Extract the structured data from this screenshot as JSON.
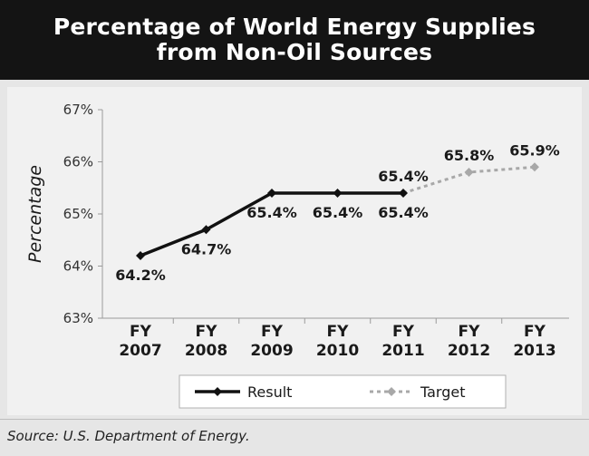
{
  "header": {
    "title_line1": "Percentage of World Energy Supplies",
    "title_line2": "from Non-Oil Sources"
  },
  "footer": {
    "source": "Source: U.S. Department of Energy."
  },
  "colors": {
    "result": "#111111",
    "target": "#a8a8a8",
    "header_bg": "#141414",
    "panel_bg": "#e6e6e6"
  },
  "chart_data": {
    "type": "line",
    "title": "Percentage of World Energy Supplies from Non-Oil Sources",
    "ylabel": "Percentage",
    "xlabel": "",
    "categories": [
      "FY 2007",
      "FY 2008",
      "FY 2009",
      "FY 2010",
      "FY 2011",
      "FY 2012",
      "FY 2013"
    ],
    "category_lines": [
      [
        "FY",
        "2007"
      ],
      [
        "FY",
        "2008"
      ],
      [
        "FY",
        "2009"
      ],
      [
        "FY",
        "2010"
      ],
      [
        "FY",
        "2011"
      ],
      [
        "FY",
        "2012"
      ],
      [
        "FY",
        "2013"
      ]
    ],
    "ylim": [
      63,
      67
    ],
    "yticks": [
      63,
      64,
      65,
      66,
      67
    ],
    "ytick_labels": [
      "63%",
      "64%",
      "65%",
      "66%",
      "67%"
    ],
    "grid": false,
    "legend_position": "bottom-center",
    "series": [
      {
        "name": "Result",
        "style": "solid",
        "marker": "diamond",
        "x": [
          "FY 2007",
          "FY 2008",
          "FY 2009",
          "FY 2010",
          "FY 2011"
        ],
        "values": [
          64.2,
          64.7,
          65.4,
          65.4,
          65.4
        ],
        "labels": [
          "64.2%",
          "64.7%",
          "65.4%",
          "65.4%",
          "65.4%"
        ],
        "label_position": [
          "below",
          "below",
          "below",
          "below",
          "below"
        ]
      },
      {
        "name": "Target",
        "style": "dotted",
        "marker": "diamond",
        "x": [
          "FY 2011",
          "FY 2012",
          "FY 2013"
        ],
        "values": [
          65.4,
          65.8,
          65.9
        ],
        "labels": [
          "65.4%",
          "65.8%",
          "65.9%"
        ],
        "label_position": [
          "above",
          "above",
          "above"
        ]
      }
    ]
  }
}
